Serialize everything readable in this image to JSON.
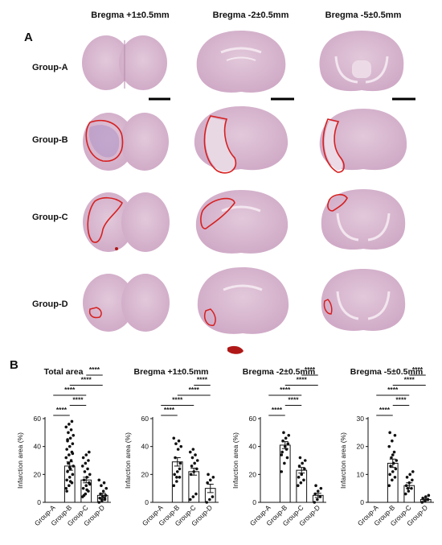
{
  "panel_a": {
    "letter": "A",
    "columns": [
      "Bregma +1±0.5mm",
      "Bregma -2±0.5mm",
      "Bregma -5±0.5mm"
    ],
    "rows": [
      "Group-A",
      "Group-B",
      "Group-C",
      "Group-D"
    ],
    "colors": {
      "tissue": "#d9bcd2",
      "tissue_dark": "#c9a3c0",
      "outline": "#d62020",
      "hemorrhage": "#b01818"
    }
  },
  "panel_b": {
    "letter": "B"
  },
  "chart_data": [
    {
      "type": "bar",
      "title": "Total area",
      "ylabel": "Infarction area (%)",
      "categories": [
        "Group-A",
        "Group-B",
        "Group-C",
        "Group-D"
      ],
      "values": [
        0,
        26,
        16,
        5
      ],
      "errors": [
        0,
        3,
        2,
        1.5
      ],
      "ylim": [
        0,
        60
      ],
      "yticks": [
        0,
        20,
        40,
        60
      ],
      "points": [
        [],
        [
          10,
          12,
          14,
          16,
          18,
          20,
          22,
          24,
          26,
          28,
          30,
          32,
          34,
          36,
          38,
          40,
          42,
          44,
          46,
          48,
          50,
          52,
          54,
          56,
          58,
          8,
          25,
          35,
          45,
          15
        ],
        [
          4,
          6,
          8,
          10,
          12,
          14,
          16,
          18,
          20,
          22,
          24,
          26,
          28,
          30,
          32,
          34,
          36,
          5,
          9,
          13
        ],
        [
          0,
          1,
          2,
          3,
          4,
          5,
          6,
          8,
          10,
          12,
          14,
          16,
          2,
          3
        ]
      ],
      "significance": [
        {
          "from": 0,
          "to": 1,
          "label": "****"
        },
        {
          "from": 1,
          "to": 2,
          "label": "****"
        },
        {
          "from": 0,
          "to": 2,
          "label": "****"
        },
        {
          "from": 1,
          "to": 3,
          "label": "****"
        },
        {
          "from": 2,
          "to": 3,
          "label": "****"
        }
      ]
    },
    {
      "type": "bar",
      "title": "Bregma +1±0.5mm",
      "ylabel": "Infarction area (%)",
      "categories": [
        "Group-A",
        "Group-B",
        "Group-C",
        "Group-D"
      ],
      "values": [
        0,
        29,
        22,
        10
      ],
      "errors": [
        0,
        3,
        2.5,
        3
      ],
      "ylim": [
        0,
        60
      ],
      "yticks": [
        0,
        20,
        40,
        60
      ],
      "points": [
        [],
        [
          12,
          15,
          18,
          20,
          22,
          28,
          32,
          38,
          40,
          42,
          44,
          46,
          18,
          24
        ],
        [
          2,
          4,
          6,
          20,
          22,
          24,
          26,
          28,
          30,
          32,
          34,
          36,
          38
        ],
        [
          0,
          2,
          4,
          14,
          16,
          18,
          20
        ]
      ],
      "significance": [
        {
          "from": 0,
          "to": 1,
          "label": "****"
        },
        {
          "from": 0,
          "to": 2,
          "label": "****"
        },
        {
          "from": 1,
          "to": 3,
          "label": "****"
        },
        {
          "from": 2,
          "to": 3,
          "label": "****"
        }
      ]
    },
    {
      "type": "bar",
      "title": "Bregma -2±0.5mm",
      "ylabel": "Infarction area (%)",
      "categories": [
        "Group-A",
        "Group-B",
        "Group-C",
        "Group-D"
      ],
      "values": [
        0,
        41,
        23,
        5
      ],
      "errors": [
        0,
        2.5,
        2,
        1.5
      ],
      "ylim": [
        0,
        60
      ],
      "yticks": [
        0,
        20,
        40,
        60
      ],
      "points": [
        [],
        [
          22,
          28,
          32,
          36,
          40,
          42,
          44,
          46,
          48,
          50,
          38,
          34
        ],
        [
          12,
          14,
          16,
          18,
          20,
          24,
          26,
          28,
          30,
          32
        ],
        [
          0,
          2,
          4,
          6,
          8,
          10,
          12
        ]
      ],
      "significance": [
        {
          "from": 0,
          "to": 1,
          "label": "****"
        },
        {
          "from": 1,
          "to": 2,
          "label": "****"
        },
        {
          "from": 0,
          "to": 2,
          "label": "****"
        },
        {
          "from": 1,
          "to": 3,
          "label": "****"
        },
        {
          "from": 2,
          "to": 3,
          "label": "****"
        }
      ]
    },
    {
      "type": "bar",
      "title": "Bregma -5±0.5mm",
      "ylabel": "Infarction area (%)",
      "categories": [
        "Group-A",
        "Group-B",
        "Group-C",
        "Group-D"
      ],
      "values": [
        0,
        14,
        6,
        1
      ],
      "errors": [
        0,
        1.5,
        1,
        0.4
      ],
      "ylim": [
        0,
        30
      ],
      "yticks": [
        0,
        10,
        20,
        30
      ],
      "points": [
        [],
        [
          6,
          8,
          9,
          10,
          11,
          12,
          13,
          14,
          15,
          16,
          18,
          20,
          22,
          24,
          25,
          17
        ],
        [
          3,
          4,
          5,
          6,
          7,
          8,
          9,
          10,
          11,
          5
        ],
        [
          0,
          0.5,
          1,
          1.5,
          2,
          2.5
        ]
      ],
      "significance": [
        {
          "from": 0,
          "to": 1,
          "label": "****"
        },
        {
          "from": 1,
          "to": 2,
          "label": "****"
        },
        {
          "from": 0,
          "to": 2,
          "label": "****"
        },
        {
          "from": 1,
          "to": 3,
          "label": "****"
        },
        {
          "from": 2,
          "to": 3,
          "label": "****"
        }
      ]
    }
  ]
}
